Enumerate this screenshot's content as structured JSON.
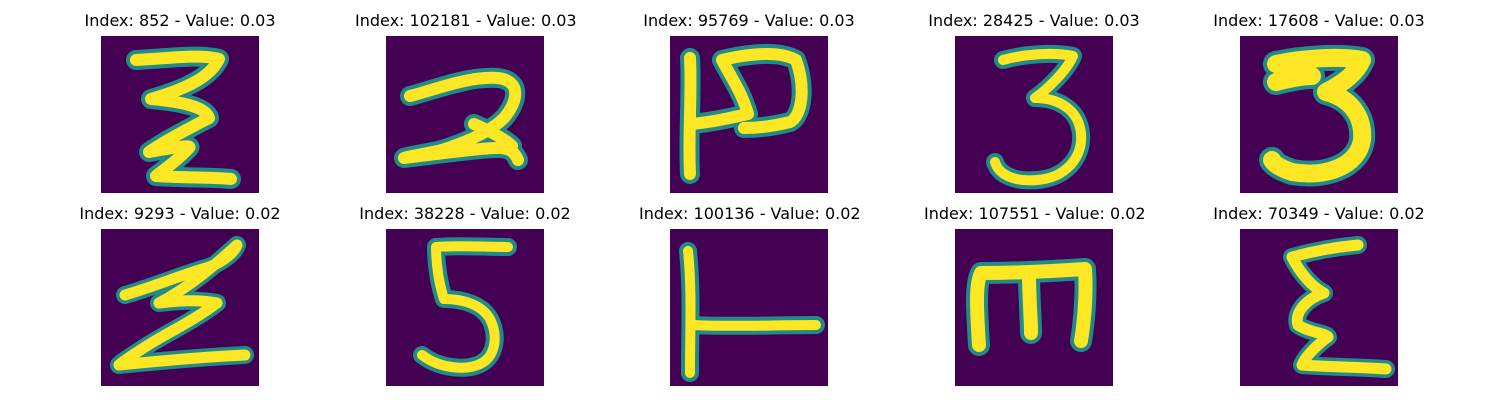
{
  "figure": {
    "panels": [
      {
        "title": "Index: 852 - Value: 0.03",
        "index": 852,
        "value": 0.03,
        "glyph": "zigzag-z"
      },
      {
        "title": "Index: 102181 - Value: 0.03",
        "index": 102181,
        "value": 0.03,
        "glyph": "two"
      },
      {
        "title": "Index: 95769 - Value: 0.03",
        "index": 95769,
        "value": 0.03,
        "glyph": "rotated-p"
      },
      {
        "title": "Index: 28425 - Value: 0.03",
        "index": 28425,
        "value": 0.03,
        "glyph": "three"
      },
      {
        "title": "Index: 17608 - Value: 0.03",
        "index": 17608,
        "value": 0.03,
        "glyph": "bold-three"
      },
      {
        "title": "Index: 9293 - Value: 0.02",
        "index": 9293,
        "value": 0.02,
        "glyph": "zigzag-wide"
      },
      {
        "title": "Index: 38228 - Value: 0.02",
        "index": 38228,
        "value": 0.02,
        "glyph": "five"
      },
      {
        "title": "Index: 100136 - Value: 0.02",
        "index": 100136,
        "value": 0.02,
        "glyph": "sideways-t"
      },
      {
        "title": "Index: 107551 - Value: 0.02",
        "index": 107551,
        "value": 0.02,
        "glyph": "rotated-e"
      },
      {
        "title": "Index: 70349 - Value: 0.02",
        "index": 70349,
        "value": 0.02,
        "glyph": "epsilon"
      }
    ],
    "colors": {
      "background": "#440154",
      "edge": "#21918c",
      "stroke": "#fde725"
    }
  }
}
